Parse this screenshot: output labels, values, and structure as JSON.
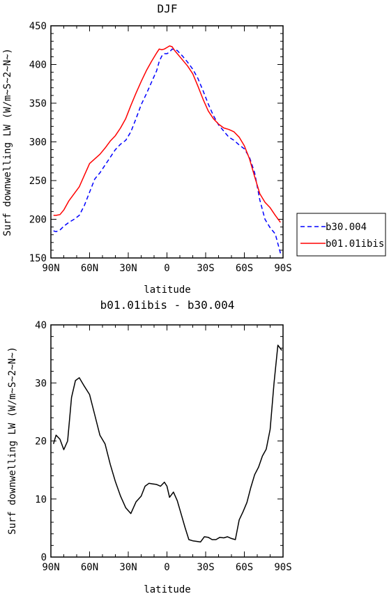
{
  "chart_data": [
    {
      "type": "line",
      "title": "DJF",
      "xlabel": "latitude",
      "ylabel": "Surf downwelling LW (W/m~S~2~N~)",
      "xlim": [
        90,
        -90
      ],
      "ylim": [
        150,
        450
      ],
      "x_ticks": [
        "90N",
        "60N",
        "30N",
        "0",
        "30S",
        "60S",
        "90S"
      ],
      "y_ticks": [
        "150",
        "200",
        "250",
        "300",
        "350",
        "400",
        "450"
      ],
      "legend": "right",
      "series": [
        {
          "name": "b30.004",
          "color": "#0000ff",
          "dash": "dashed",
          "x": [
            88,
            86,
            83,
            80,
            76,
            72,
            68,
            64,
            60,
            56,
            52,
            48,
            44,
            40,
            36,
            32,
            28,
            24,
            20,
            16,
            12,
            8,
            6,
            4,
            2,
            0,
            -2,
            -4,
            -6,
            -8,
            -12,
            -16,
            -20,
            -24,
            -28,
            -32,
            -36,
            -40,
            -44,
            -48,
            -52,
            -56,
            -60,
            -64,
            -68,
            -72,
            -76,
            -80,
            -84,
            -88
          ],
          "values": [
            185,
            184,
            186,
            191,
            196,
            200,
            205,
            218,
            235,
            252,
            260,
            270,
            280,
            290,
            297,
            302,
            313,
            330,
            348,
            362,
            377,
            392,
            404,
            411,
            414,
            414,
            416,
            420,
            419,
            418,
            411,
            403,
            394,
            382,
            366,
            349,
            334,
            322,
            314,
            306,
            302,
            296,
            291,
            280,
            260,
            225,
            200,
            189,
            181,
            156
          ]
        },
        {
          "name": "b01.01ibis",
          "color": "#ff0000",
          "dash": "solid",
          "x": [
            88,
            86,
            83,
            80,
            76,
            72,
            68,
            64,
            60,
            56,
            52,
            48,
            44,
            40,
            36,
            32,
            28,
            24,
            20,
            16,
            12,
            8,
            6,
            4,
            2,
            0,
            -2,
            -4,
            -6,
            -8,
            -12,
            -16,
            -20,
            -24,
            -28,
            -32,
            -36,
            -40,
            -44,
            -48,
            -52,
            -56,
            -60,
            -64,
            -68,
            -72,
            -76,
            -80,
            -84,
            -88
          ],
          "values": [
            205,
            205,
            206,
            212,
            224,
            233,
            242,
            257,
            272,
            278,
            284,
            292,
            301,
            308,
            318,
            330,
            347,
            363,
            378,
            392,
            404,
            415,
            420,
            419,
            420,
            422,
            424,
            423,
            418,
            414,
            406,
            398,
            388,
            372,
            355,
            340,
            330,
            323,
            318,
            316,
            313,
            306,
            295,
            278,
            255,
            233,
            222,
            215,
            205,
            196
          ]
        }
      ]
    },
    {
      "type": "line",
      "title": "b01.01ibis - b30.004",
      "xlabel": "latitude",
      "ylabel": "Surf downwelling LW (W/m~S~2~N~)",
      "xlim": [
        90,
        -90
      ],
      "ylim": [
        0,
        40
      ],
      "x_ticks": [
        "90N",
        "60N",
        "30N",
        "0",
        "30S",
        "60S",
        "90S"
      ],
      "y_ticks": [
        "0",
        "10",
        "20",
        "30",
        "40"
      ],
      "series": [
        {
          "color": "#000000",
          "dash": "solid",
          "x": [
            88,
            86,
            83,
            80,
            77,
            74,
            71,
            68,
            64,
            60,
            56,
            52,
            48,
            44,
            40,
            36,
            32,
            28,
            24,
            20,
            17,
            14,
            11,
            8,
            5,
            2,
            0,
            -2,
            -5,
            -8,
            -11,
            -14,
            -17,
            -20,
            -23,
            -26,
            -29,
            -32,
            -35,
            -38,
            -41,
            -44,
            -47,
            -50,
            -53,
            -56,
            -59,
            -62,
            -65,
            -68,
            -71,
            -74,
            -77,
            -80,
            -83,
            -86,
            -89
          ],
          "values": [
            19.5,
            21,
            20.3,
            18.5,
            20,
            27.5,
            30.4,
            30.9,
            29.4,
            28,
            24.5,
            21,
            19.5,
            16,
            13,
            10.5,
            8.5,
            7.5,
            9.5,
            10.5,
            12.2,
            12.7,
            12.6,
            12.5,
            12.2,
            12.9,
            12.2,
            10.3,
            11.2,
            9.7,
            7.4,
            5.1,
            3,
            2.8,
            2.7,
            2.6,
            3.5,
            3.4,
            3,
            3,
            3.4,
            3.3,
            3.5,
            3.2,
            3,
            6.4,
            7.8,
            9.4,
            12,
            14.2,
            15.5,
            17.4,
            18.6,
            22,
            30,
            36.5,
            35.6
          ]
        }
      ]
    }
  ]
}
